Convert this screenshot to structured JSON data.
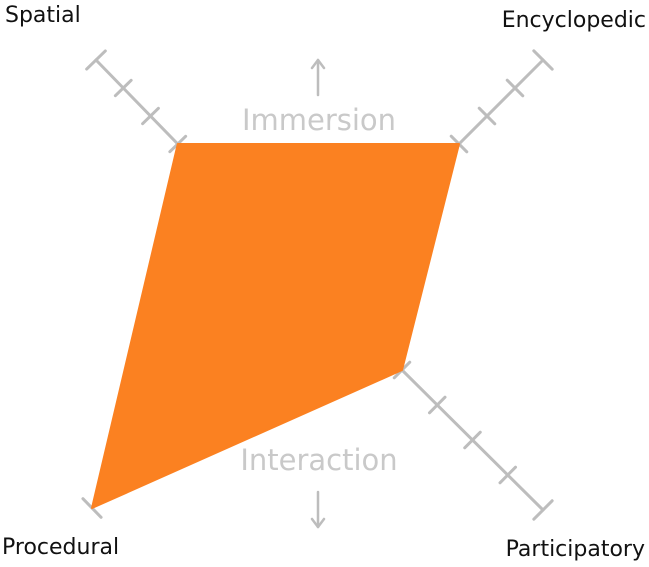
{
  "axes": [
    {
      "key": "spatial",
      "label": "Spatial",
      "value": 2
    },
    {
      "key": "encyclopedic",
      "label": "Encyclopedic",
      "value": 2
    },
    {
      "key": "participatory",
      "label": "Participatory",
      "value": 1
    },
    {
      "key": "procedural",
      "label": "Procedural",
      "value": 5
    }
  ],
  "scale": {
    "ticks": 5
  },
  "center_labels": {
    "top": "Immersion",
    "bottom": "Interaction"
  },
  "arrows": {
    "top": "arrow-up-icon",
    "bottom": "arrow-down-icon"
  },
  "colors": {
    "shape_fill": "#fb8121",
    "axis": "#bdbdbd",
    "center_text": "#c9c9c9",
    "corner_text": "#111111"
  }
}
